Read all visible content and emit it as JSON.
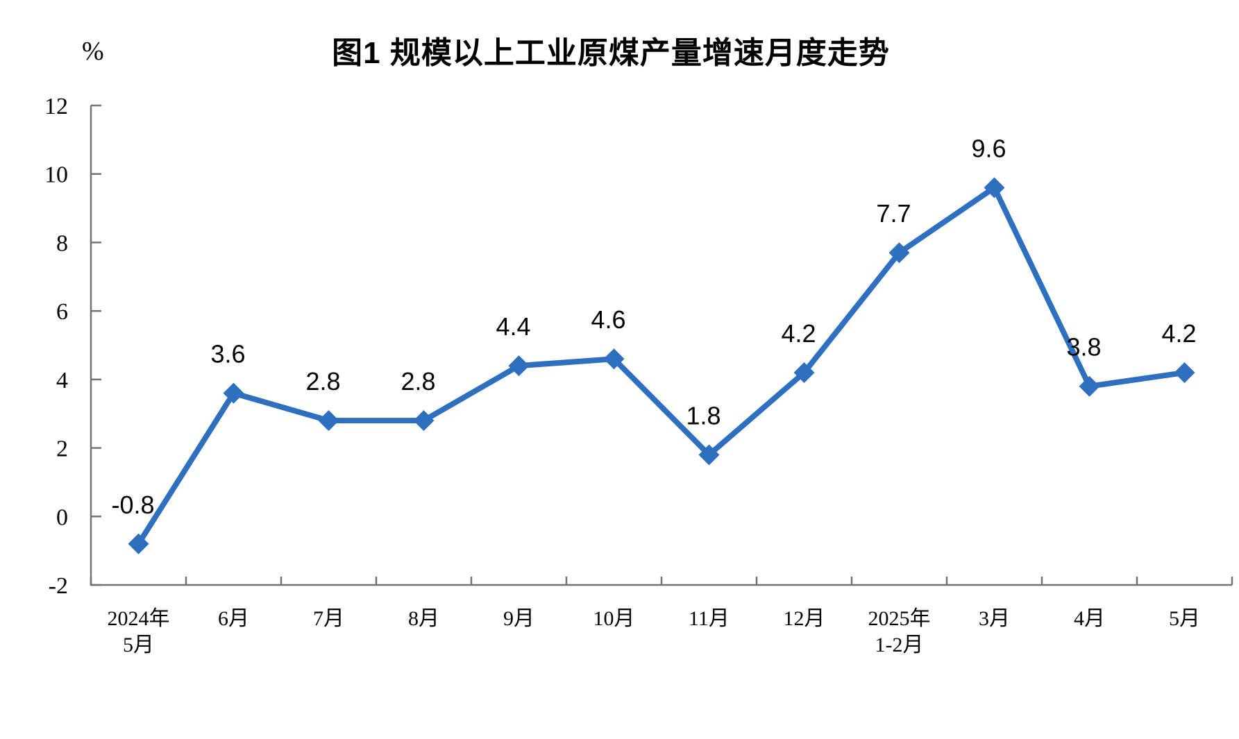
{
  "page": {
    "background": "#ffffff"
  },
  "chart_data": {
    "type": "line",
    "title": "图1  规模以上工业原煤产量增速月度走势",
    "unit_label": "%",
    "categories": [
      "2024年\n5月",
      "6月",
      "7月",
      "8月",
      "9月",
      "10月",
      "11月",
      "12月",
      "2025年\n1-2月",
      "3月",
      "4月",
      "5月"
    ],
    "values": [
      -0.8,
      3.6,
      2.8,
      2.8,
      4.4,
      4.6,
      1.8,
      4.2,
      7.7,
      9.6,
      3.8,
      4.2
    ],
    "data_labels": [
      "-0.8",
      "3.6",
      "2.8",
      "2.8",
      "4.4",
      "4.6",
      "1.8",
      "4.2",
      "7.7",
      "9.6",
      "3.8",
      "4.2"
    ],
    "ylim": [
      -2,
      12
    ],
    "ytick_step": 2,
    "ytick_labels": [
      "-2",
      "0",
      "2",
      "4",
      "6",
      "8",
      "10",
      "12"
    ],
    "grid": false,
    "legend": "none",
    "marker": "diamond",
    "line_color": "#2E6FBF",
    "marker_color": "#2E6FBF",
    "axis_color": "#737373",
    "text_color": "#000000"
  }
}
